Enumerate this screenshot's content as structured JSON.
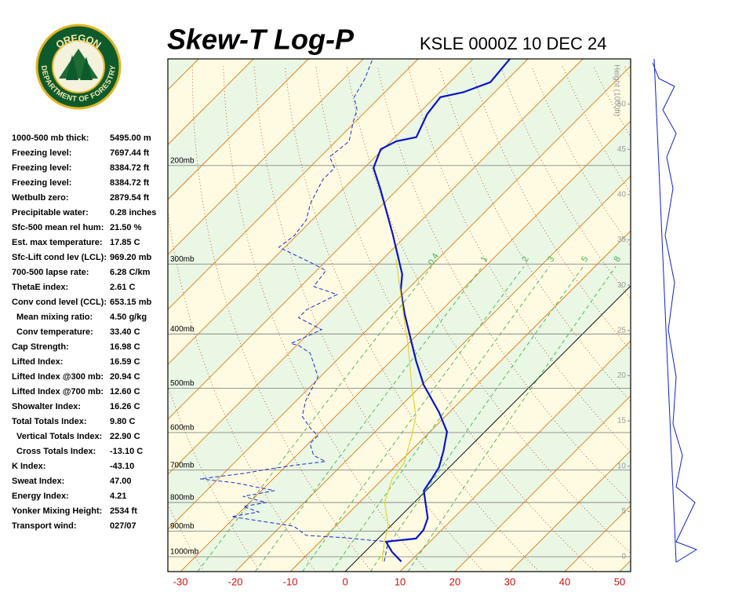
{
  "chart_data": {
    "type": "skewt",
    "title": "Skew-T Log-P",
    "subtitle": "KSLE 0000Z 10 DEC 24",
    "logo": {
      "top": "OREGON",
      "bottom": "DEPARTMENT OF FORESTRY"
    },
    "y2_label": "Height (1000ft)",
    "xlim": [
      -32.3,
      52
    ],
    "xticks": [
      -30,
      -20,
      -10,
      0,
      10,
      20,
      30,
      40,
      50
    ],
    "log_y": true,
    "ylim": [
      1063,
      129
    ],
    "yticks": [
      {
        "value": 200,
        "label": "200mb"
      },
      {
        "value": 300,
        "label": "300mb"
      },
      {
        "value": 400,
        "label": "400mb"
      },
      {
        "value": 500,
        "label": "500mb"
      },
      {
        "value": 600,
        "label": "600mb"
      },
      {
        "value": 700,
        "label": "700mb"
      },
      {
        "value": 800,
        "label": "800mb"
      },
      {
        "value": 900,
        "label": "900mb"
      },
      {
        "value": 1000,
        "label": "1000mb"
      }
    ],
    "y2lim": [
      -1.65,
      55.0
    ],
    "y2ticks": [
      0,
      5,
      10,
      15,
      20,
      25,
      30,
      35,
      40,
      45,
      50
    ],
    "mixing_ratios": [
      0.4,
      1,
      2,
      3,
      5,
      8
    ],
    "series": [
      {
        "color": "#0a14c8",
        "style": "solid",
        "pressure": [
          1020,
          981,
          940,
          928,
          896,
          853,
          762,
          726,
          692,
          648,
          598,
          552,
          493,
          447,
          368,
          334,
          313,
          266,
          220,
          202,
          187,
          181,
          178,
          162,
          151,
          148,
          142,
          129
        ],
        "values": [
          8.4,
          5.0,
          2.0,
          6.9,
          6.7,
          5.3,
          -0.4,
          -1.1,
          -1.9,
          -4.0,
          -6.9,
          -11.9,
          -19.7,
          -25.4,
          -36.1,
          -41.1,
          -43.7,
          -52.6,
          -63.3,
          -68.3,
          -70.4,
          -69.0,
          -66.1,
          -68.3,
          -69.0,
          -65.7,
          -62.6,
          -63.3
        ]
      },
      {
        "color": "#1a2ad8",
        "style": "dashed",
        "pressure": [
          1020,
          940,
          934,
          925,
          916,
          882,
          867,
          848,
          832,
          813,
          800,
          780,
          762,
          738,
          726,
          710,
          698,
          685,
          676,
          659,
          628,
          608,
          588,
          561,
          526,
          477,
          433,
          419,
          416,
          393,
          374,
          362,
          340,
          329,
          308,
          298,
          280,
          267,
          250,
          234,
          212,
          202,
          193,
          181,
          167,
          159,
          151,
          140,
          129
        ],
        "values": [
          5.3,
          2.4,
          -1.4,
          -6.1,
          -13.7,
          -17.6,
          -23.3,
          -30.7,
          -26.6,
          -30.4,
          -26.9,
          -32.3,
          -27.6,
          -36.1,
          -43.3,
          -36.4,
          -32.9,
          -28.0,
          -23.6,
          -26.9,
          -29.7,
          -29.7,
          -32.6,
          -36.1,
          -38.3,
          -40.4,
          -46.1,
          -49.7,
          -51.4,
          -48.3,
          -54.7,
          -54.7,
          -51.9,
          -57.6,
          -58.3,
          -62.6,
          -71.1,
          -70.4,
          -71.1,
          -73.3,
          -75.4,
          -75.4,
          -78.3,
          -77.6,
          -80.4,
          -81.9,
          -84.7,
          -86.1,
          -88.3
        ]
      },
      {
        "color": "#e6d21e",
        "style": "thin",
        "pressure": [
          1020,
          940,
          882,
          800,
          726,
          681,
          608,
          561,
          493,
          419,
          380,
          294
        ],
        "values": [
          4.9,
          1.7,
          -0.4,
          -5.4,
          -8.3,
          -9.0,
          -12.6,
          -15.4,
          -21.9,
          -29.7,
          -34.7,
          -47.6
        ]
      }
    ],
    "stats": [
      {
        "label": "1000-500 mb thick:",
        "value": "5495.00 m"
      },
      {
        "label": "Freezing level:",
        "value": "7697.44 ft"
      },
      {
        "label": "Freezing level:",
        "value": "8384.72 ft"
      },
      {
        "label": "Freezing level:",
        "value": "8384.72 ft"
      },
      {
        "label": "Wetbulb zero:",
        "value": "2879.54 ft"
      },
      {
        "label": "Precipitable water:",
        "value": "0.28 inches"
      },
      {
        "label": "Sfc-500 mean rel hum:",
        "value": "21.50 %"
      },
      {
        "label": "Est. max temperature:",
        "value": "17.85 C"
      },
      {
        "label": "Sfc-Lift cond lev (LCL):",
        "value": "969.20 mb"
      },
      {
        "label": "700-500 lapse rate:",
        "value": "6.28 C/km"
      },
      {
        "label": "ThetaE index:",
        "value": "2.61 C"
      },
      {
        "label": "Conv cond level (CCL):",
        "value": "653.15 mb"
      },
      {
        "label": "Mean mixing ratio:",
        "value": "4.50 g/kg"
      },
      {
        "label": "Conv temperature:",
        "value": "33.40 C"
      },
      {
        "label": "Cap Strength:",
        "value": "16.98 C"
      },
      {
        "label": "Lifted Index:",
        "value": "16.59 C"
      },
      {
        "label": "Lifted Index @300 mb:",
        "value": "20.94 C"
      },
      {
        "label": "Lifted Index @700 mb:",
        "value": "12.60 C"
      },
      {
        "label": "Showalter Index:",
        "value": "16.26 C"
      },
      {
        "label": "Total Totals Index:",
        "value": "9.80 C"
      },
      {
        "label": "Vertical Totals Index:",
        "value": "22.90 C"
      },
      {
        "label": "Cross Totals Index:",
        "value": "-13.10 C"
      },
      {
        "label": "K Index:",
        "value": "-43.10"
      },
      {
        "label": "Sweat Index:",
        "value": "47.00"
      },
      {
        "label": "Energy Index:",
        "value": "4.21"
      },
      {
        "label": "Yonker Mixing Height:",
        "value": "2534 ft"
      },
      {
        "label": "Transport wind:",
        "value": "027/07"
      }
    ]
  }
}
